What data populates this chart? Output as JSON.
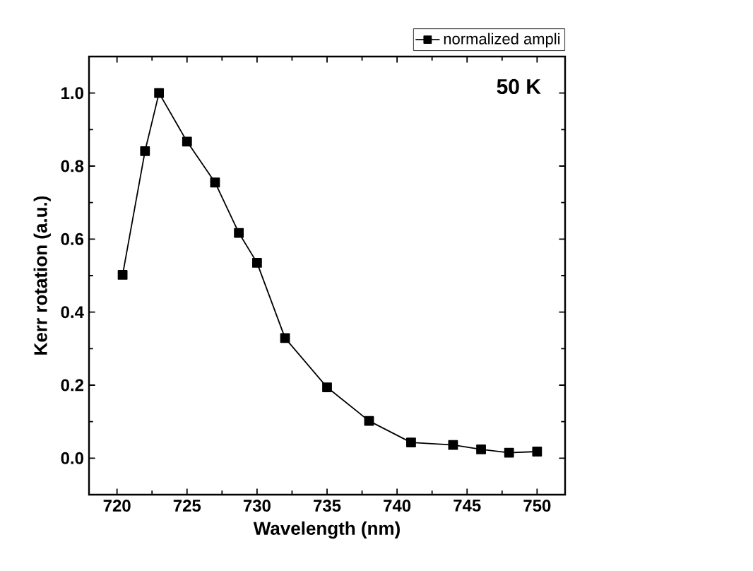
{
  "chart_data": {
    "type": "line",
    "xlabel": "Wavelength (nm)",
    "ylabel": "Kerr rotation (a.u.)",
    "annotations": [
      "50 K"
    ],
    "x": [
      720.4,
      722.0,
      723.0,
      725.0,
      727.0,
      728.7,
      730.0,
      732.0,
      735.0,
      738.0,
      741.0,
      744.0,
      746.0,
      748.0,
      750.0
    ],
    "series": [
      {
        "name": "normalized ampli",
        "color": "#000000",
        "values": [
          0.502,
          0.841,
          1.0,
          0.867,
          0.755,
          0.617,
          0.535,
          0.329,
          0.194,
          0.102,
          0.043,
          0.036,
          0.024,
          0.015,
          0.018
        ]
      }
    ],
    "xlim": [
      718,
      752
    ],
    "ylim": [
      -0.1,
      1.1
    ],
    "xticks": [
      720,
      725,
      730,
      735,
      740,
      745,
      750
    ],
    "yticks": [
      {
        "value": 0,
        "label": "0.0"
      },
      {
        "value": 0.2,
        "label": "0.2"
      },
      {
        "value": 0.4,
        "label": "0.4"
      },
      {
        "value": 0.6,
        "label": "0.6"
      },
      {
        "value": 0.8,
        "label": "0.8"
      },
      {
        "value": 1.0,
        "label": "1.0"
      }
    ],
    "marker": "square",
    "line_style": "solid",
    "legend": "top right"
  }
}
